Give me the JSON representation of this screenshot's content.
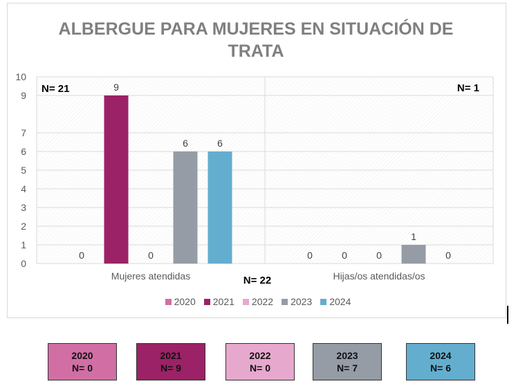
{
  "chart_data": {
    "type": "bar",
    "title": "ALBERGUE PARA MUJERES EN SITUACIÓN DE TRATA",
    "title_lines": [
      "ALBERGUE PARA MUJERES EN SITUACIÓN DE",
      "TRATA"
    ],
    "categories": [
      "Mujeres atendidas",
      "Hijas/os atendidas/os"
    ],
    "series": [
      {
        "name": "2020",
        "color": "#d16fa4",
        "values": [
          0,
          0
        ]
      },
      {
        "name": "2021",
        "color": "#9b2266",
        "values": [
          9,
          0
        ]
      },
      {
        "name": "2022",
        "color": "#e7a8cd",
        "values": [
          0,
          0
        ]
      },
      {
        "name": "2023",
        "color": "#959ca6",
        "values": [
          6,
          1
        ]
      },
      {
        "name": "2024",
        "color": "#63aece",
        "values": [
          6,
          0
        ]
      }
    ],
    "ylim": [
      0,
      10
    ],
    "yticks": [
      0,
      1,
      2,
      3,
      4,
      5,
      6,
      7,
      9,
      10
    ],
    "grid": true,
    "legend_position": "bottom",
    "annotations": {
      "left_total": "N= 21",
      "right_total": "N= 1",
      "grand_total": "N= 22"
    }
  },
  "summary_boxes": [
    {
      "year": "2020",
      "n": "N= 0",
      "color": "#d16fa4"
    },
    {
      "year": "2021",
      "n": "N= 9",
      "color": "#9b2266"
    },
    {
      "year": "2022",
      "n": "N= 0",
      "color": "#e7a8cd"
    },
    {
      "year": "2023",
      "n": "N= 7",
      "color": "#959ca6"
    },
    {
      "year": "2024",
      "n": "N= 6",
      "color": "#63aece"
    }
  ]
}
